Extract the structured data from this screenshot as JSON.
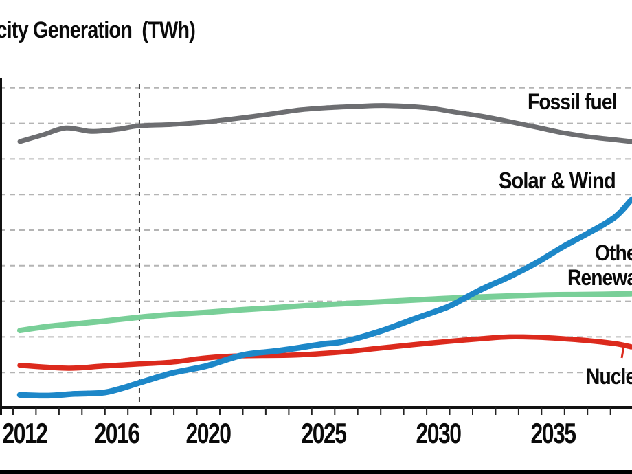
{
  "title": {
    "text": "Electricity Generation  (TWh)"
  },
  "series_labels": {
    "fossil_fuel": "Fossil fuel",
    "solar_wind": "Solar & Wind",
    "other_renewables_line1": "Other",
    "other_renewables_line2": "Renewables",
    "nuclear": "Nuclear"
  },
  "colors": {
    "fossil_fuel": "#6d6e71",
    "solar_wind": "#1d87c8",
    "other_renewables": "#79cf98",
    "nuclear": "#dc2a1d",
    "gridline": "#b4b4b4",
    "axis": "#111111",
    "tick": "#222222",
    "marker_line": "#3c3c3c",
    "bottom_bar": "#000000",
    "text": "#0a0a0a"
  },
  "x_axis": {
    "tick_labels": [
      {
        "year": 2012,
        "label": "2012"
      },
      {
        "year": 2016,
        "label": "2016"
      },
      {
        "year": 2020,
        "label": "2020"
      },
      {
        "year": 2025,
        "label": "2025"
      },
      {
        "year": 2030,
        "label": "2030"
      },
      {
        "year": 2035,
        "label": "2035"
      }
    ],
    "minor_ticks": {
      "from": 2012,
      "to": 2039,
      "step": 1
    }
  },
  "chart_data": {
    "type": "line",
    "title": "Electricity Generation (TWh)",
    "xlabel": "",
    "ylabel": "",
    "x_range_visible": [
      2012,
      2038
    ],
    "y_axis_labels_visible": false,
    "y_value_note": "y-axis scale is cropped out of frame; values are in gridline units above the x-axis baseline (1 unit = 1 gridline spacing)",
    "gridlines": {
      "horizontal_count": 9,
      "style": "dashed"
    },
    "vertical_marker_year": 2017,
    "legend_position": "inline-labels",
    "series": [
      {
        "name": "Fossil fuel",
        "color": "#6d6e71",
        "points": [
          [
            2011.8,
            7.49
          ],
          [
            2012.8,
            7.68
          ],
          [
            2013.8,
            7.87
          ],
          [
            2014.8,
            7.78
          ],
          [
            2015.4,
            7.79
          ],
          [
            2016.1,
            7.84
          ],
          [
            2017,
            7.93
          ],
          [
            2018.4,
            7.97
          ],
          [
            2019.9,
            8.04
          ],
          [
            2021.4,
            8.15
          ],
          [
            2022.9,
            8.28
          ],
          [
            2024,
            8.38
          ],
          [
            2025.2,
            8.44
          ],
          [
            2026.5,
            8.48
          ],
          [
            2027.8,
            8.5
          ],
          [
            2029.5,
            8.44
          ],
          [
            2030.7,
            8.32
          ],
          [
            2031.9,
            8.2
          ],
          [
            2033.1,
            8.05
          ],
          [
            2034.3,
            7.89
          ],
          [
            2035.4,
            7.74
          ],
          [
            2036.6,
            7.62
          ],
          [
            2037.7,
            7.54
          ],
          [
            2038.4,
            7.49
          ]
        ]
      },
      {
        "name": "Solar & Wind",
        "color": "#1d87c8",
        "points": [
          [
            2011.8,
            0.37
          ],
          [
            2013,
            0.35
          ],
          [
            2014.2,
            0.4
          ],
          [
            2015.4,
            0.43
          ],
          [
            2016.2,
            0.55
          ],
          [
            2017,
            0.71
          ],
          [
            2018.4,
            0.98
          ],
          [
            2019.9,
            1.18
          ],
          [
            2021.5,
            1.49
          ],
          [
            2022.9,
            1.6
          ],
          [
            2023.8,
            1.68
          ],
          [
            2025,
            1.8
          ],
          [
            2025.9,
            1.87
          ],
          [
            2027.4,
            2.14
          ],
          [
            2028.9,
            2.49
          ],
          [
            2030.4,
            2.84
          ],
          [
            2031.1,
            3.07
          ],
          [
            2031.9,
            3.34
          ],
          [
            2033.1,
            3.69
          ],
          [
            2034.3,
            4.09
          ],
          [
            2035.4,
            4.52
          ],
          [
            2036.6,
            4.94
          ],
          [
            2037.7,
            5.37
          ],
          [
            2038.4,
            5.85
          ]
        ]
      },
      {
        "name": "Other Renewables",
        "color": "#79cf98",
        "points": [
          [
            2011.8,
            2.18
          ],
          [
            2013.1,
            2.3
          ],
          [
            2014.3,
            2.37
          ],
          [
            2015.4,
            2.44
          ],
          [
            2017,
            2.55
          ],
          [
            2018.4,
            2.63
          ],
          [
            2019.9,
            2.69
          ],
          [
            2021.4,
            2.76
          ],
          [
            2022.9,
            2.82
          ],
          [
            2024.3,
            2.88
          ],
          [
            2025.8,
            2.93
          ],
          [
            2027.3,
            2.98
          ],
          [
            2028.8,
            3.03
          ],
          [
            2030.3,
            3.08
          ],
          [
            2031.8,
            3.12
          ],
          [
            2033.2,
            3.15
          ],
          [
            2034.7,
            3.18
          ],
          [
            2036.2,
            3.19
          ],
          [
            2038.4,
            3.21
          ]
        ]
      },
      {
        "name": "Nuclear",
        "color": "#dc2a1d",
        "points": [
          [
            2011.8,
            1.2
          ],
          [
            2013.9,
            1.12
          ],
          [
            2015.4,
            1.18
          ],
          [
            2017,
            1.24
          ],
          [
            2018.4,
            1.29
          ],
          [
            2019.9,
            1.41
          ],
          [
            2021.5,
            1.47
          ],
          [
            2023.8,
            1.49
          ],
          [
            2025.9,
            1.58
          ],
          [
            2027.4,
            1.68
          ],
          [
            2028.9,
            1.78
          ],
          [
            2030.4,
            1.87
          ],
          [
            2031.9,
            1.95
          ],
          [
            2033.1,
            2.0
          ],
          [
            2034.3,
            1.99
          ],
          [
            2035.4,
            1.95
          ],
          [
            2036.6,
            1.89
          ],
          [
            2037.7,
            1.81
          ],
          [
            2038.4,
            1.72
          ]
        ]
      }
    ],
    "annotations": [
      {
        "target_series": "Nuclear",
        "label": "Nuclear",
        "type": "leader-line"
      }
    ]
  }
}
